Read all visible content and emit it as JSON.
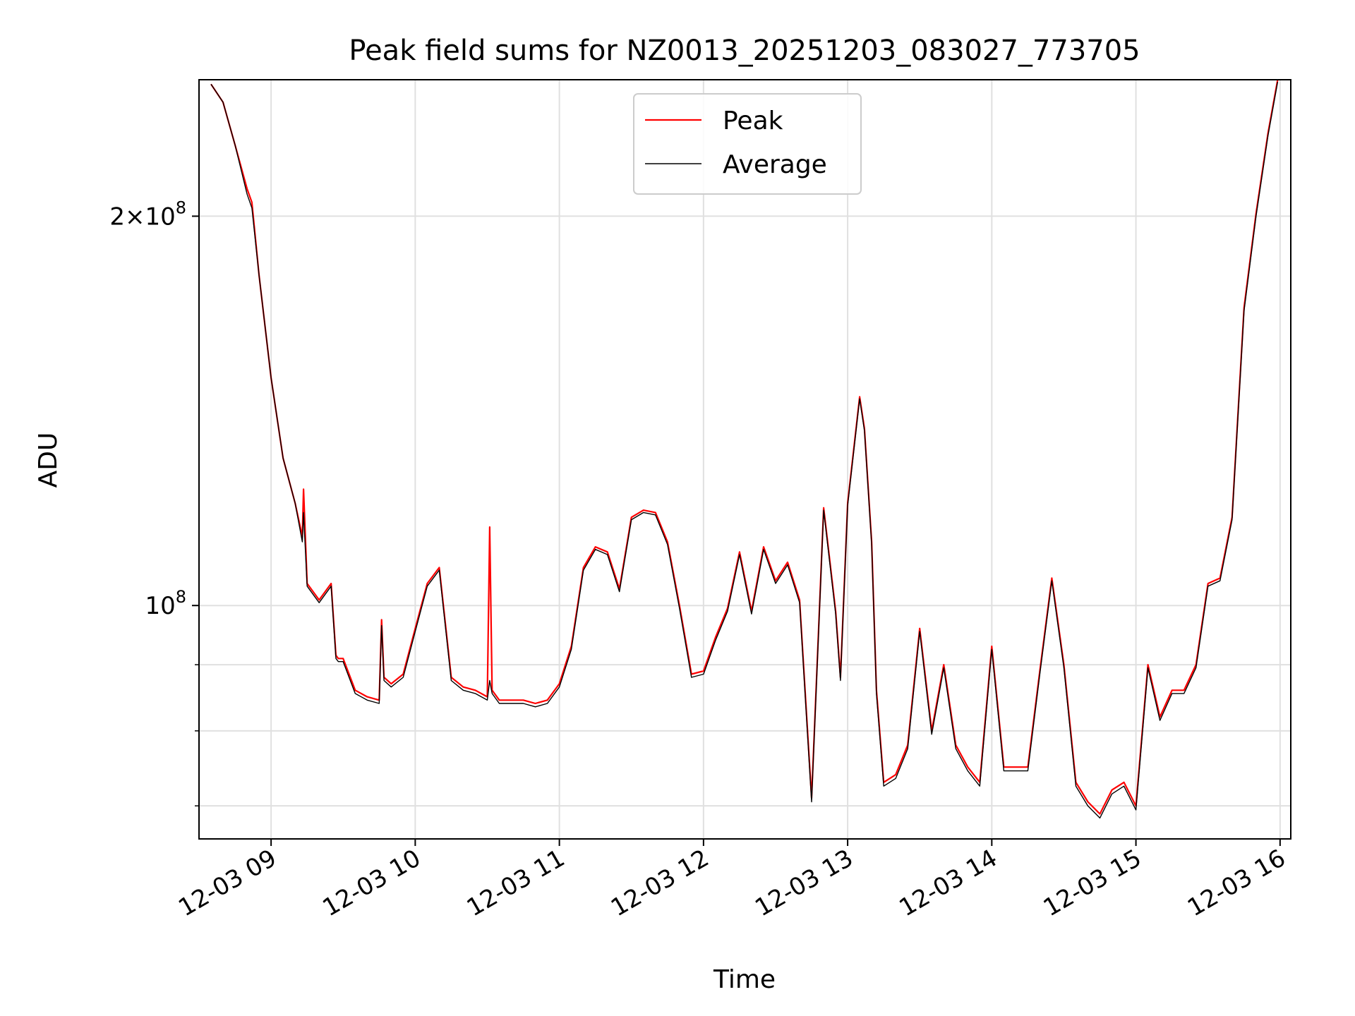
{
  "chart_data": {
    "type": "line",
    "title": "Peak field sums for NZ0013_20251203_083027_773705",
    "xlabel": "Time",
    "ylabel": "ADU",
    "y_scale": "log",
    "x_range": [
      "2025-12-03 08:30",
      "2025-12-03 16:00"
    ],
    "ylim": [
      66000000,
      255000000
    ],
    "x_ticks": [
      {
        "t": "2025-12-03 09:00",
        "label": "12-03 09"
      },
      {
        "t": "2025-12-03 10:00",
        "label": "12-03 10"
      },
      {
        "t": "2025-12-03 11:00",
        "label": "12-03 11"
      },
      {
        "t": "2025-12-03 12:00",
        "label": "12-03 12"
      },
      {
        "t": "2025-12-03 13:00",
        "label": "12-03 13"
      },
      {
        "t": "2025-12-03 14:00",
        "label": "12-03 14"
      },
      {
        "t": "2025-12-03 15:00",
        "label": "12-03 15"
      },
      {
        "t": "2025-12-03 16:00",
        "label": "12-03 16"
      }
    ],
    "y_major_ticks": [
      {
        "value": 100000000,
        "mantissa": "",
        "exponent": "8"
      },
      {
        "value": 200000000,
        "mantissa": "2",
        "exponent": "8"
      }
    ],
    "y_minor_ticks": [
      70000000,
      80000000,
      90000000
    ],
    "grid": true,
    "legend": {
      "position": "upper center",
      "entries": [
        "Peak",
        "Average"
      ]
    },
    "colors": {
      "Peak": "#ff0000",
      "Average": "#000000"
    },
    "series": [
      {
        "name": "Peak",
        "x": [
          "08:35",
          "08:40",
          "08:45",
          "08:50",
          "08:52",
          "08:55",
          "09:00",
          "09:05",
          "09:10",
          "09:13",
          "09:13.5",
          "09:15",
          "09:20",
          "09:25",
          "09:27",
          "09:28",
          "09:30",
          "09:35",
          "09:40",
          "09:45",
          "09:46",
          "09:47",
          "09:50",
          "09:55",
          "10:00",
          "10:05",
          "10:10",
          "10:15",
          "10:20",
          "10:25",
          "10:30",
          "10:31",
          "10:32",
          "10:35",
          "10:40",
          "10:45",
          "10:50",
          "10:55",
          "11:00",
          "11:05",
          "11:10",
          "11:15",
          "11:20",
          "11:25",
          "11:30",
          "11:35",
          "11:40",
          "11:45",
          "11:50",
          "11:55",
          "12:00",
          "12:05",
          "12:10",
          "12:15",
          "12:20",
          "12:25",
          "12:30",
          "12:35",
          "12:40",
          "12:45",
          "12:50",
          "12:55",
          "12:57",
          "13:00",
          "13:05",
          "13:07",
          "13:10",
          "13:12",
          "13:15",
          "13:20",
          "13:25",
          "13:30",
          "13:35",
          "13:40",
          "13:45",
          "13:50",
          "13:55",
          "14:00",
          "14:05",
          "14:10",
          "14:15",
          "14:20",
          "14:25",
          "14:30",
          "14:35",
          "14:40",
          "14:45",
          "14:50",
          "14:55",
          "15:00",
          "15:05",
          "15:10",
          "15:15",
          "15:20",
          "15:25",
          "15:30",
          "15:35",
          "15:40",
          "15:45",
          "15:50",
          "15:55",
          "15:59"
        ],
        "y": [
          253000000,
          245000000,
          227000000,
          210000000,
          205000000,
          180000000,
          150000000,
          130000000,
          120000000,
          113000000,
          123000000,
          104000000,
          101000000,
          104000000,
          91500000,
          91000000,
          91000000,
          86000000,
          85000000,
          84500000,
          97500000,
          88000000,
          87000000,
          88500000,
          96000000,
          104000000,
          107000000,
          88000000,
          86500000,
          86000000,
          85000000,
          115000000,
          86000000,
          84500000,
          84500000,
          84500000,
          84000000,
          84500000,
          87000000,
          93000000,
          107000000,
          111000000,
          110000000,
          103000000,
          117000000,
          118500000,
          118000000,
          112000000,
          100000000,
          88500000,
          89000000,
          94500000,
          99500000,
          110000000,
          99000000,
          111000000,
          104500000,
          108000000,
          101000000,
          71000000,
          119000000,
          99000000,
          88000000,
          120000000,
          145000000,
          137000000,
          112000000,
          86000000,
          73000000,
          74000000,
          78000000,
          96000000,
          80000000,
          90000000,
          78000000,
          75000000,
          73000000,
          93000000,
          75000000,
          75000000,
          75000000,
          89000000,
          105000000,
          90000000,
          73000000,
          70500000,
          69000000,
          72000000,
          73000000,
          70000000,
          90000000,
          82000000,
          86000000,
          86000000,
          90000000,
          104000000,
          105000000,
          117000000,
          170000000,
          201000000,
          232000000,
          255000000
        ]
      },
      {
        "name": "Average",
        "x": [
          "08:35",
          "08:40",
          "08:45",
          "08:50",
          "08:52",
          "08:55",
          "09:00",
          "09:05",
          "09:10",
          "09:13",
          "09:13.5",
          "09:15",
          "09:20",
          "09:25",
          "09:27",
          "09:28",
          "09:30",
          "09:35",
          "09:40",
          "09:45",
          "09:46",
          "09:47",
          "09:50",
          "09:55",
          "10:00",
          "10:05",
          "10:10",
          "10:15",
          "10:20",
          "10:25",
          "10:30",
          "10:31",
          "10:32",
          "10:35",
          "10:40",
          "10:45",
          "10:50",
          "10:55",
          "11:00",
          "11:05",
          "11:10",
          "11:15",
          "11:20",
          "11:25",
          "11:30",
          "11:35",
          "11:40",
          "11:45",
          "11:50",
          "11:55",
          "12:00",
          "12:05",
          "12:10",
          "12:15",
          "12:20",
          "12:25",
          "12:30",
          "12:35",
          "12:40",
          "12:45",
          "12:50",
          "12:55",
          "12:57",
          "13:00",
          "13:05",
          "13:07",
          "13:10",
          "13:12",
          "13:15",
          "13:20",
          "13:25",
          "13:30",
          "13:35",
          "13:40",
          "13:45",
          "13:50",
          "13:55",
          "14:00",
          "14:05",
          "14:10",
          "14:15",
          "14:20",
          "14:25",
          "14:30",
          "14:35",
          "14:40",
          "14:45",
          "14:50",
          "14:55",
          "15:00",
          "15:05",
          "15:10",
          "15:15",
          "15:20",
          "15:25",
          "15:30",
          "15:35",
          "15:40",
          "15:45",
          "15:50",
          "15:55",
          "15:59"
        ],
        "y": [
          253000000,
          245000000,
          227000000,
          208000000,
          203000000,
          180000000,
          150000000,
          130000000,
          120000000,
          112000000,
          118000000,
          103500000,
          100500000,
          103500000,
          91000000,
          90500000,
          90500000,
          85500000,
          84500000,
          84000000,
          96500000,
          87500000,
          86500000,
          88000000,
          95500000,
          103500000,
          106500000,
          87500000,
          86000000,
          85500000,
          84500000,
          87500000,
          85500000,
          84000000,
          84000000,
          84000000,
          83500000,
          84000000,
          86500000,
          92500000,
          106500000,
          110500000,
          109500000,
          102500000,
          116500000,
          118000000,
          117500000,
          111500000,
          99500000,
          88000000,
          88500000,
          94000000,
          99000000,
          109500000,
          98500000,
          110500000,
          104000000,
          107500000,
          100500000,
          70500000,
          118500000,
          98500000,
          87500000,
          119500000,
          144500000,
          136500000,
          111500000,
          85500000,
          72500000,
          73500000,
          77500000,
          95500000,
          79500000,
          89500000,
          77500000,
          74500000,
          72500000,
          92500000,
          74500000,
          74500000,
          74500000,
          88500000,
          104500000,
          89500000,
          72500000,
          70000000,
          68500000,
          71500000,
          72500000,
          69500000,
          89500000,
          81500000,
          85500000,
          85500000,
          89500000,
          103500000,
          104500000,
          116500000,
          169000000,
          200000000,
          231000000,
          254000000
        ]
      }
    ]
  }
}
